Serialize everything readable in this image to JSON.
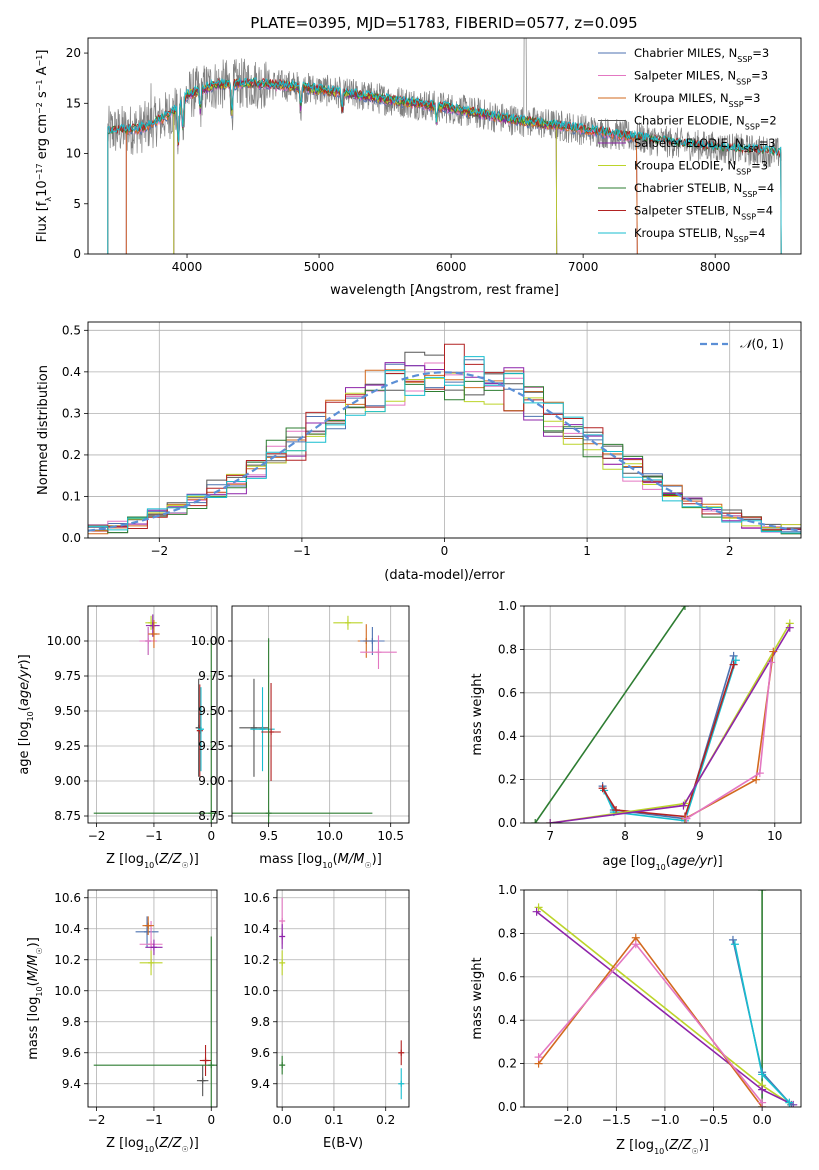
{
  "title": "PLATE=0395, MJD=51783, FIBERID=0577, z=0.095",
  "colors": {
    "ch_miles": "#4c72b0",
    "sa_miles": "#e377c2",
    "kr_miles": "#d2691e",
    "ch_elodie": "#555555",
    "sa_elodie": "#8e24aa",
    "kr_elodie": "#bcd42a",
    "ch_stelib": "#2e7d32",
    "sa_stelib": "#b22222",
    "kr_stelib": "#17becf",
    "data": "#7f7f7f",
    "gauss": "#5b8fd6"
  },
  "chart_data": [
    {
      "id": "spectrum",
      "type": "line",
      "xlabel": "wavelength [Angstrom, rest frame]",
      "ylabel": "Flux [f_λ10^-17 erg cm^-2 s^-1 A^-1]",
      "xlim": [
        3250,
        8650
      ],
      "ylim": [
        0,
        21.5
      ],
      "xticks": [
        4000,
        5000,
        6000,
        7000,
        8000
      ],
      "yticks": [
        0,
        5,
        10,
        15,
        20
      ],
      "legend": {
        "position": "top-right",
        "entries": [
          "Chabrier MILES, N_SSP=3",
          "Salpeter MILES, N_SSP=3",
          "Kroupa MILES, N_SSP=3",
          "Chabrier ELODIE, N_SSP=2",
          "Salpeter ELODIE, N_SSP=3",
          "Kroupa ELODIE, N_SSP=3",
          "Chabrier STELIB, N_SSP=4",
          "Salpeter STELIB, N_SSP=4",
          "Kroupa STELIB, N_SSP=4"
        ]
      },
      "continuum": [
        [
          3400,
          12.2
        ],
        [
          3500,
          12.3
        ],
        [
          3650,
          12.5
        ],
        [
          3800,
          13.4
        ],
        [
          3900,
          14.2
        ],
        [
          4000,
          15.8
        ],
        [
          4200,
          16.8
        ],
        [
          4500,
          17.0
        ],
        [
          4800,
          16.7
        ],
        [
          5200,
          16.0
        ],
        [
          5600,
          15.2
        ],
        [
          6000,
          14.5
        ],
        [
          6400,
          13.5
        ],
        [
          6800,
          12.8
        ],
        [
          7200,
          12.0
        ],
        [
          7600,
          11.2
        ],
        [
          8000,
          10.6
        ],
        [
          8400,
          10.2
        ],
        [
          8500,
          10.0
        ]
      ]
    },
    {
      "id": "residuals",
      "type": "histogram",
      "xlabel": "(data-model)/error",
      "ylabel": "Normed distribution",
      "xlim": [
        -2.5,
        2.5
      ],
      "ylim": [
        0,
        0.52
      ],
      "xticks": [
        -2,
        -1,
        0,
        1,
        2
      ],
      "yticks": [
        0.0,
        0.1,
        0.2,
        0.3,
        0.4,
        0.5
      ],
      "legend": {
        "position": "top-right",
        "entries": [
          "N(0,1)"
        ]
      },
      "gaussian": {
        "mean": 0,
        "sigma": 1
      },
      "bins": [
        -2.5,
        2.5,
        36
      ]
    },
    {
      "id": "age_vs_Z",
      "type": "scatter",
      "xlabel": "Z [log10(Z/Z☉)]",
      "ylabel": "age [log10(age/yr)]",
      "xlim": [
        -2.15,
        0.1
      ],
      "ylim": [
        8.7,
        10.25
      ],
      "xticks": [
        -2,
        -1,
        0
      ],
      "yticks": [
        8.75,
        9.0,
        9.25,
        9.5,
        9.75,
        10.0
      ],
      "points": [
        {
          "x": -1.05,
          "y": 10.13,
          "ex": 0.1,
          "ey": 0.05,
          "c": "kr_elodie"
        },
        {
          "x": -1.02,
          "y": 10.11,
          "ex": 0.12,
          "ey": 0.08,
          "c": "sa_elodie"
        },
        {
          "x": -1.1,
          "y": 10.0,
          "ex": 0.15,
          "ey": 0.1,
          "c": "ch_miles"
        },
        {
          "x": -1.1,
          "y": 10.0,
          "ex": 0.15,
          "ey": 0.1,
          "c": "sa_miles"
        },
        {
          "x": -1.0,
          "y": 10.05,
          "ex": 0.1,
          "ey": 0.1,
          "c": "kr_miles"
        },
        {
          "x": -0.22,
          "y": 9.38,
          "ex": 0.05,
          "ey": 0.35,
          "c": "ch_elodie"
        },
        {
          "x": -0.2,
          "y": 9.36,
          "ex": 0.05,
          "ey": 0.33,
          "c": "sa_stelib"
        },
        {
          "x": -0.18,
          "y": 9.37,
          "ex": 0.05,
          "ey": 0.3,
          "c": "kr_stelib"
        },
        {
          "x": 0.0,
          "y": 8.77,
          "ex": 2.05,
          "ey": 1.25,
          "c": "ch_stelib"
        }
      ]
    },
    {
      "id": "age_vs_mass",
      "type": "scatter",
      "xlabel": "mass [log10(M/M☉)]",
      "xlim": [
        9.2,
        10.65
      ],
      "ylim": [
        8.7,
        10.25
      ],
      "xticks": [
        9.5,
        10.0,
        10.5
      ],
      "yticks": [
        8.75,
        9.0,
        9.25,
        9.5,
        9.75,
        10.0
      ],
      "points": [
        {
          "x": 10.15,
          "y": 10.13,
          "ex": 0.12,
          "ey": 0.05,
          "c": "kr_elodie"
        },
        {
          "x": 10.3,
          "y": 10.0,
          "ex": 0.07,
          "ey": 0.12,
          "c": "kr_miles"
        },
        {
          "x": 10.35,
          "y": 10.0,
          "ex": 0.1,
          "ey": 0.1,
          "c": "ch_miles"
        },
        {
          "x": 10.4,
          "y": 9.92,
          "ex": 0.15,
          "ey": 0.12,
          "c": "sa_miles"
        },
        {
          "x": 9.38,
          "y": 9.38,
          "ex": 0.12,
          "ey": 0.35,
          "c": "ch_elodie"
        },
        {
          "x": 9.45,
          "y": 9.37,
          "ex": 0.1,
          "ey": 0.3,
          "c": "kr_stelib"
        },
        {
          "x": 9.52,
          "y": 9.35,
          "ex": 0.08,
          "ey": 0.35,
          "c": "sa_stelib"
        },
        {
          "x": 9.5,
          "y": 8.77,
          "ex": 0.85,
          "ey": 1.25,
          "c": "ch_stelib"
        }
      ]
    },
    {
      "id": "weight_vs_age",
      "type": "line",
      "xlabel": "age [log10(age/yr)]",
      "ylabel": "mass weight",
      "xlim": [
        6.65,
        10.35
      ],
      "ylim": [
        0,
        1.0
      ],
      "xticks": [
        7,
        8,
        9,
        10
      ],
      "yticks": [
        0.0,
        0.2,
        0.4,
        0.6,
        0.8,
        1.0
      ],
      "series": [
        {
          "c": "ch_stelib",
          "x": [
            6.8,
            8.8
          ],
          "y": [
            0.0,
            1.0
          ]
        },
        {
          "c": "ch_miles",
          "x": [
            7.7,
            7.85,
            8.8,
            9.45
          ],
          "y": [
            0.17,
            0.06,
            0.02,
            0.77
          ]
        },
        {
          "c": "kr_stelib",
          "x": [
            7.72,
            7.85,
            8.8,
            9.48
          ],
          "y": [
            0.15,
            0.05,
            0.01,
            0.75
          ]
        },
        {
          "c": "sa_stelib",
          "x": [
            7.7,
            7.88,
            8.8,
            9.45
          ],
          "y": [
            0.16,
            0.06,
            0.03,
            0.73
          ]
        },
        {
          "c": "kr_elodie",
          "x": [
            7.0,
            8.8,
            10.2
          ],
          "y": [
            0.0,
            0.09,
            0.92
          ]
        },
        {
          "c": "sa_elodie",
          "x": [
            7.0,
            8.78,
            10.2
          ],
          "y": [
            0.0,
            0.08,
            0.9
          ]
        },
        {
          "c": "kr_miles",
          "x": [
            8.8,
            9.75,
            9.98
          ],
          "y": [
            0.02,
            0.2,
            0.79
          ]
        },
        {
          "c": "sa_miles",
          "x": [
            8.82,
            9.8,
            9.95
          ],
          "y": [
            0.02,
            0.23,
            0.74
          ]
        }
      ]
    },
    {
      "id": "mass_vs_Z",
      "type": "scatter",
      "xlabel": "Z [log10(Z/Z☉)]",
      "ylabel": "mass [log10(M/M☉)]",
      "xlim": [
        -2.15,
        0.1
      ],
      "ylim": [
        9.25,
        10.65
      ],
      "xticks": [
        -2,
        -1,
        0
      ],
      "yticks": [
        9.4,
        9.6,
        9.8,
        10.0,
        10.2,
        10.4,
        10.6
      ],
      "points": [
        {
          "x": -1.12,
          "y": 10.38,
          "ex": 0.2,
          "ey": 0.1,
          "c": "ch_miles"
        },
        {
          "x": -1.05,
          "y": 10.3,
          "ex": 0.2,
          "ey": 0.15,
          "c": "sa_miles"
        },
        {
          "x": -1.0,
          "y": 10.28,
          "ex": 0.15,
          "ey": 0.05,
          "c": "sa_elodie"
        },
        {
          "x": -1.05,
          "y": 10.18,
          "ex": 0.2,
          "ey": 0.08,
          "c": "kr_elodie"
        },
        {
          "x": -1.1,
          "y": 10.42,
          "ex": 0.1,
          "ey": 0.06,
          "c": "kr_miles"
        },
        {
          "x": -0.1,
          "y": 9.55,
          "ex": 0.1,
          "ey": 0.1,
          "c": "sa_stelib"
        },
        {
          "x": -0.15,
          "y": 9.42,
          "ex": 0.1,
          "ey": 0.1,
          "c": "ch_elodie"
        },
        {
          "x": 0.0,
          "y": 9.52,
          "ex": 2.05,
          "ey": 0.83,
          "c": "ch_stelib"
        }
      ]
    },
    {
      "id": "mass_vs_EBV",
      "type": "scatter",
      "xlabel": "E(B-V)",
      "xlim": [
        -0.01,
        0.245
      ],
      "ylim": [
        9.25,
        10.65
      ],
      "xticks": [
        0.0,
        0.1,
        0.2
      ],
      "yticks": [
        9.4,
        9.6,
        9.8,
        10.0,
        10.2,
        10.4,
        10.6
      ],
      "points": [
        {
          "x": 0.0,
          "y": 10.45,
          "ex": 0.0,
          "ey": 0.15,
          "c": "sa_miles"
        },
        {
          "x": 0.0,
          "y": 10.35,
          "ex": 0.0,
          "ey": 0.08,
          "c": "sa_elodie"
        },
        {
          "x": 0.0,
          "y": 10.18,
          "ex": 0.0,
          "ey": 0.08,
          "c": "kr_elodie"
        },
        {
          "x": 0.0,
          "y": 9.52,
          "ex": 0.0,
          "ey": 0.06,
          "c": "ch_stelib"
        },
        {
          "x": 0.23,
          "y": 9.6,
          "ex": 0.0,
          "ey": 0.08,
          "c": "sa_stelib"
        },
        {
          "x": 0.23,
          "y": 9.4,
          "ex": 0.0,
          "ey": 0.1,
          "c": "kr_stelib"
        }
      ]
    },
    {
      "id": "weight_vs_Z",
      "type": "line",
      "xlabel": "Z [log10(Z/Z☉)]",
      "ylabel": "mass weight",
      "xlim": [
        -2.45,
        0.4
      ],
      "ylim": [
        0,
        1.0
      ],
      "xticks": [
        -2.0,
        -1.5,
        -1.0,
        -0.5,
        0.0
      ],
      "yticks": [
        0.0,
        0.2,
        0.4,
        0.6,
        0.8,
        1.0
      ],
      "series": [
        {
          "c": "ch_stelib",
          "x": [
            0.0,
            0.0
          ],
          "y": [
            0.0,
            1.0
          ]
        },
        {
          "c": "kr_elodie",
          "x": [
            -2.3,
            0.0,
            0.3
          ],
          "y": [
            0.92,
            0.1,
            0.01
          ]
        },
        {
          "c": "sa_elodie",
          "x": [
            -2.32,
            0.0,
            0.32
          ],
          "y": [
            0.9,
            0.08,
            0.01
          ]
        },
        {
          "c": "kr_miles",
          "x": [
            -2.3,
            -1.3,
            0.0
          ],
          "y": [
            0.2,
            0.78,
            0.0
          ]
        },
        {
          "c": "sa_miles",
          "x": [
            -2.3,
            -1.3,
            0.0
          ],
          "y": [
            0.23,
            0.75,
            0.02
          ]
        },
        {
          "c": "ch_miles",
          "x": [
            -0.3,
            0.0,
            0.3
          ],
          "y": [
            0.77,
            0.16,
            0.01
          ]
        },
        {
          "c": "kr_stelib",
          "x": [
            -0.28,
            0.0,
            0.28
          ],
          "y": [
            0.75,
            0.15,
            0.02
          ]
        }
      ]
    }
  ]
}
